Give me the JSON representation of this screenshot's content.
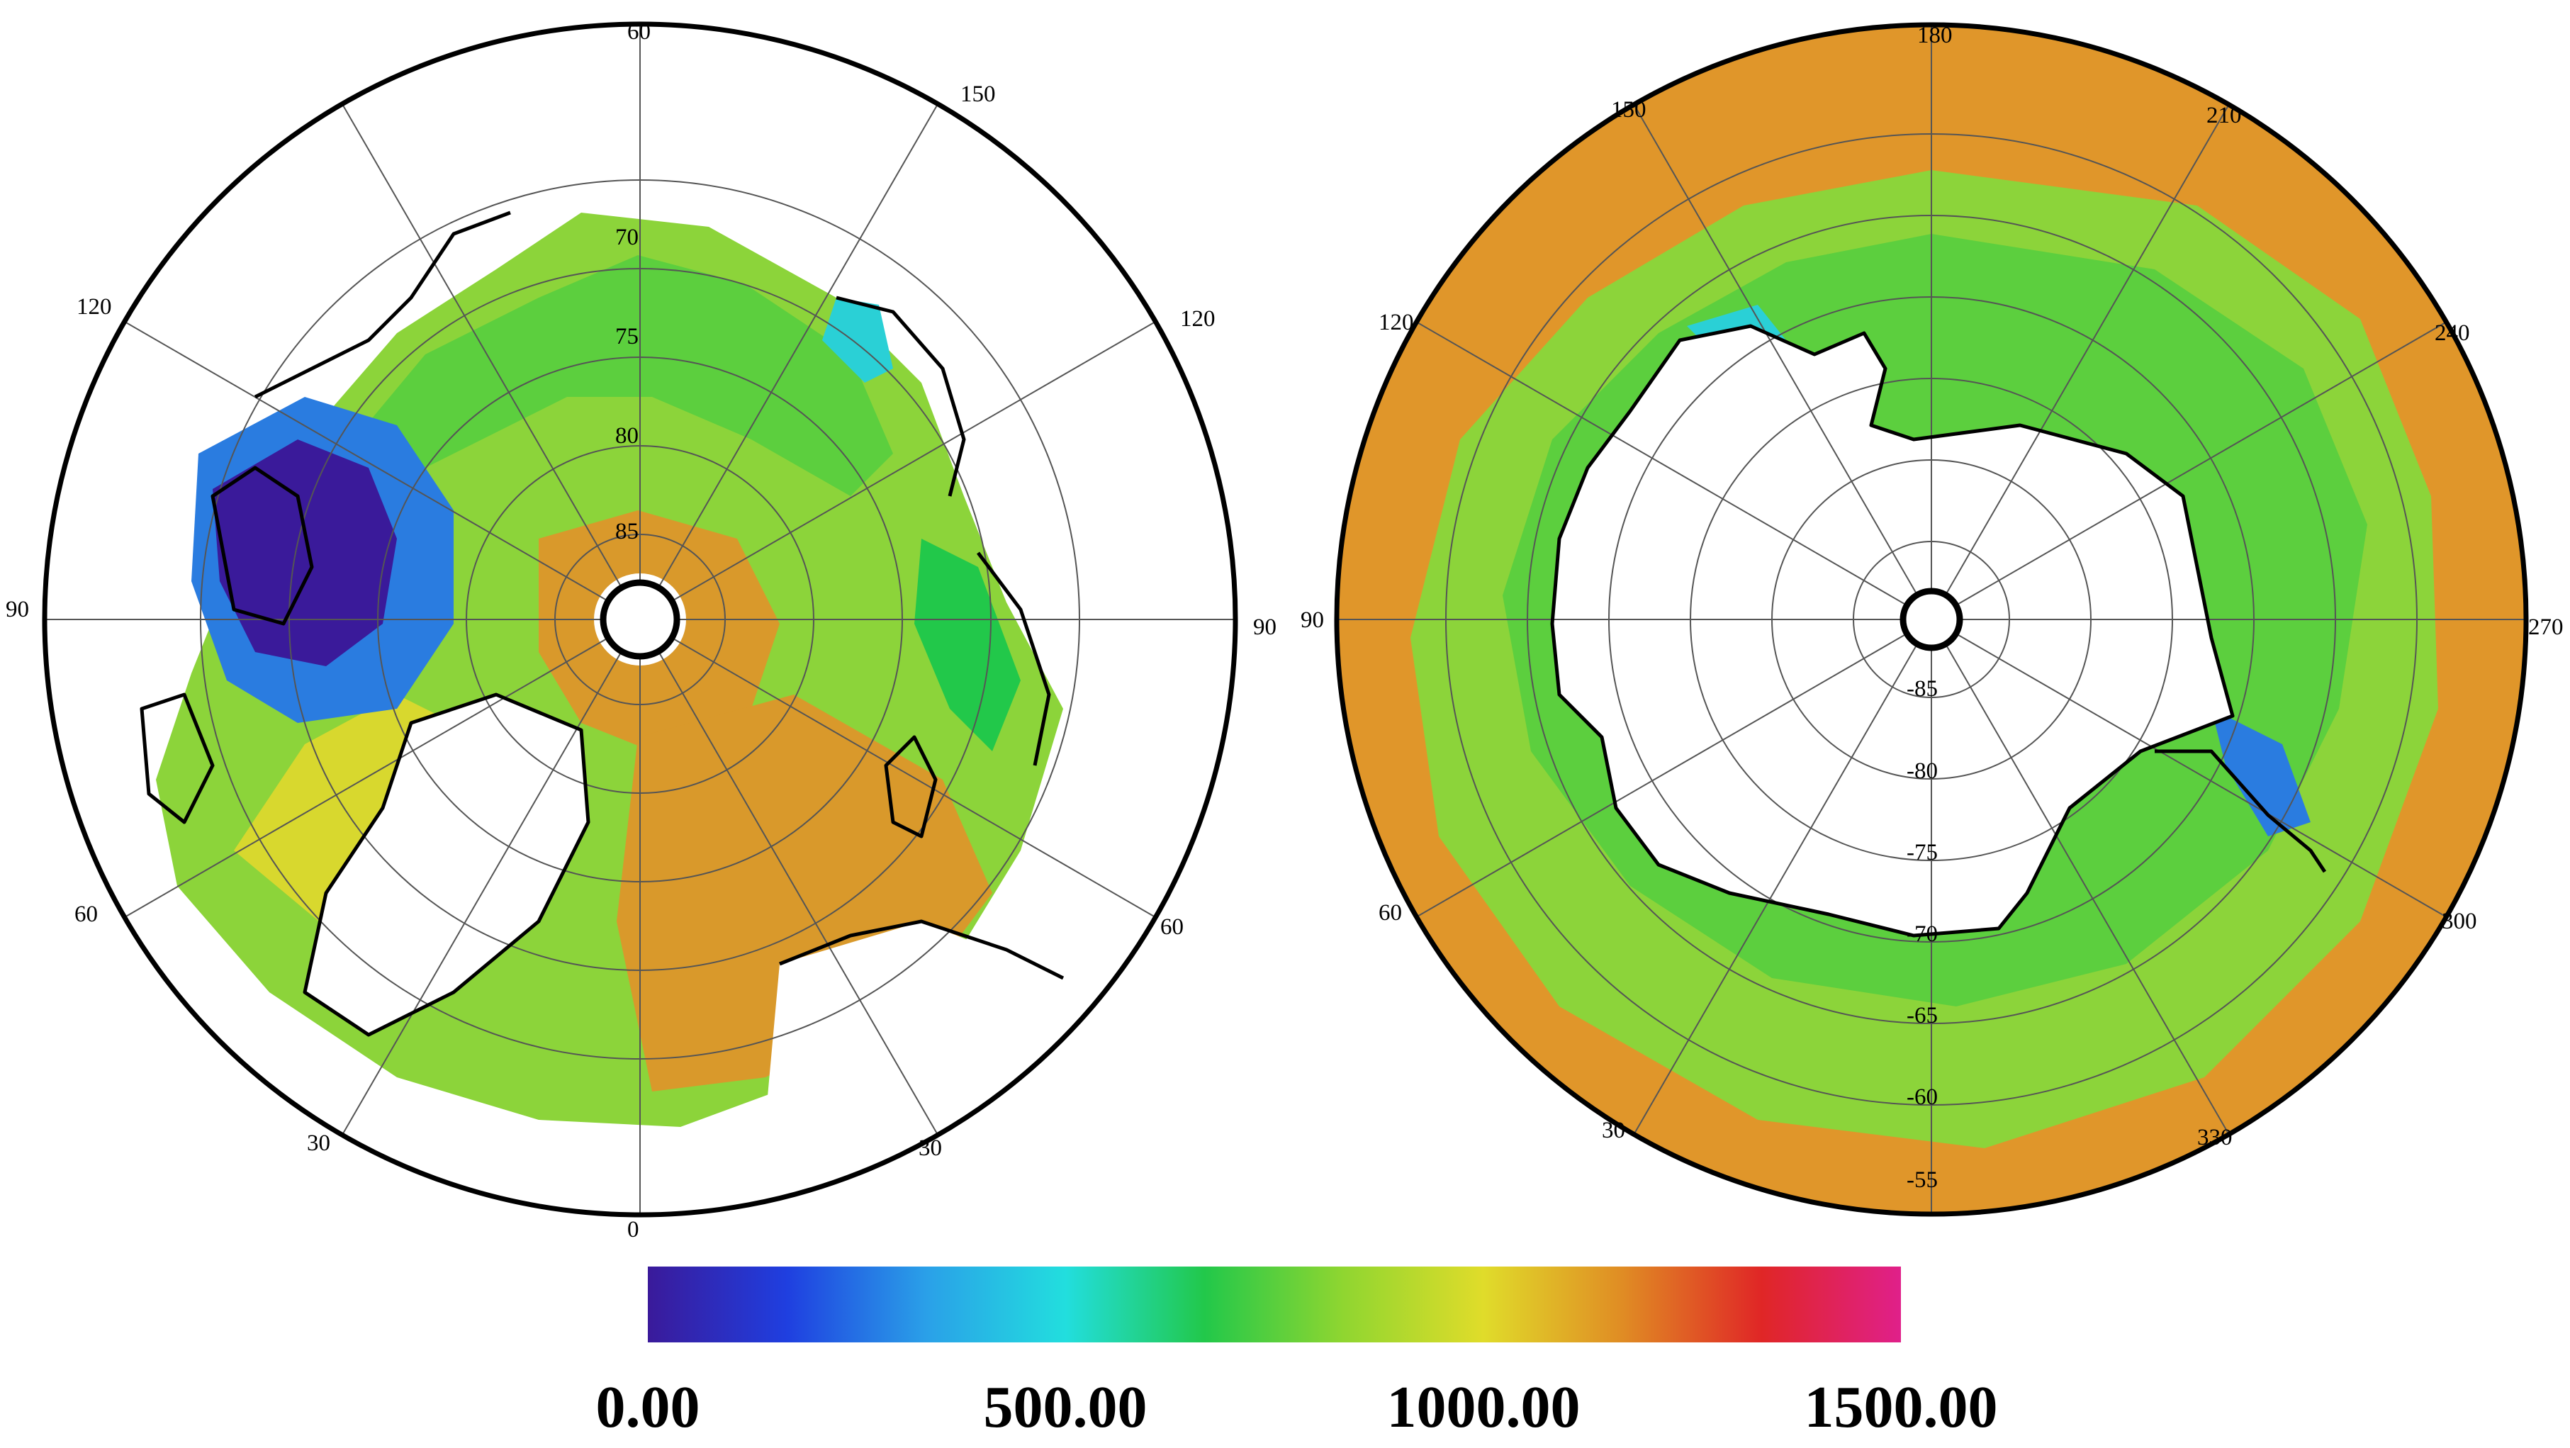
{
  "north_map": {
    "longitude_labels": [
      "60",
      "150",
      "120",
      "120",
      "90",
      "90",
      "60",
      "60",
      "30",
      "30",
      "0"
    ],
    "latitude_labels": [
      "70",
      "75",
      "80",
      "85"
    ]
  },
  "south_map": {
    "longitude_labels": [
      "180",
      "150",
      "210",
      "120",
      "240",
      "90",
      "270",
      "60",
      "300",
      "30",
      "330"
    ],
    "latitude_labels": [
      "-85",
      "-80",
      "-75",
      "-70",
      "-65",
      "-60",
      "-55"
    ]
  },
  "colorbar": {
    "ticks": [
      "0.00",
      "500.00",
      "1000.00",
      "1500.00"
    ],
    "min": 0,
    "max": 1500,
    "colors": [
      "#3a1a9a",
      "#1f3fe0",
      "#2aa0e8",
      "#22dede",
      "#22c84a",
      "#90d630",
      "#e0dc2a",
      "#e08c24",
      "#e02626",
      "#e0208a"
    ]
  }
}
